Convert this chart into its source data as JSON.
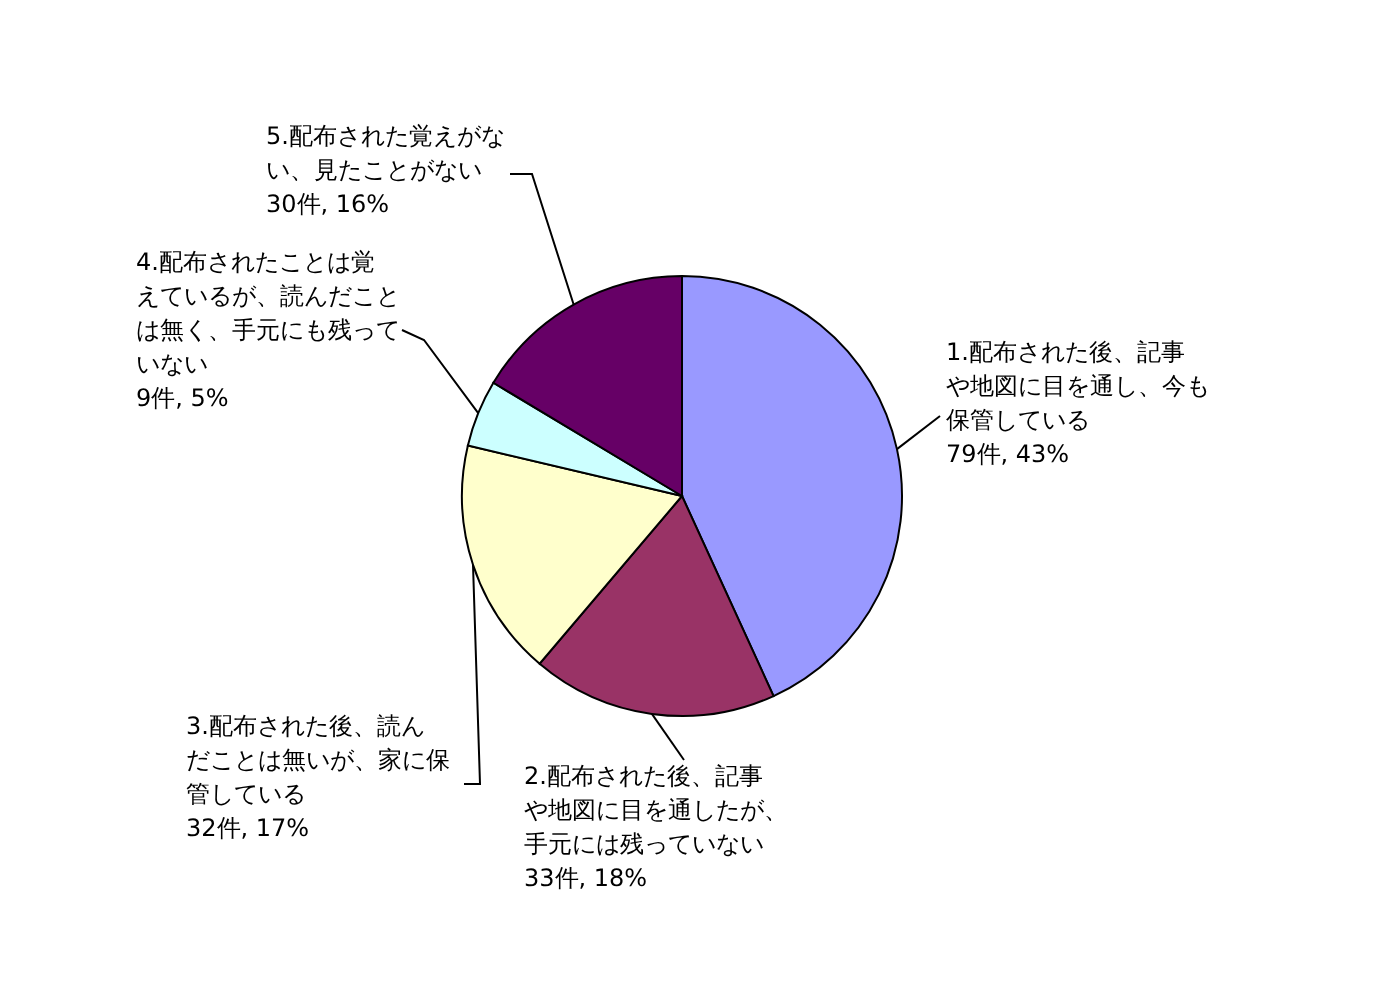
{
  "chart_data": {
    "type": "pie",
    "categories": [
      "1.配布された後、記事や地図に目を通し、今も保管している",
      "2.配布された後、記事や地図に目を通したが、手元には残っていない",
      "3.配布された後、読んだことは無いが、家に保管している",
      "4.配布されたことは覚えているが、読んだことは無く、手元にも残っていない",
      "5.配布された覚えがない、見たことがない"
    ],
    "values": [
      79,
      33,
      32,
      9,
      30
    ],
    "value_labels": [
      "79件, 43%",
      "33件, 18%",
      "32件, 17%",
      "9件, 5%",
      "30件, 16%"
    ],
    "colors": [
      "#9999ff",
      "#993366",
      "#ffffcc",
      "#ccffff",
      "#660066"
    ]
  }
}
